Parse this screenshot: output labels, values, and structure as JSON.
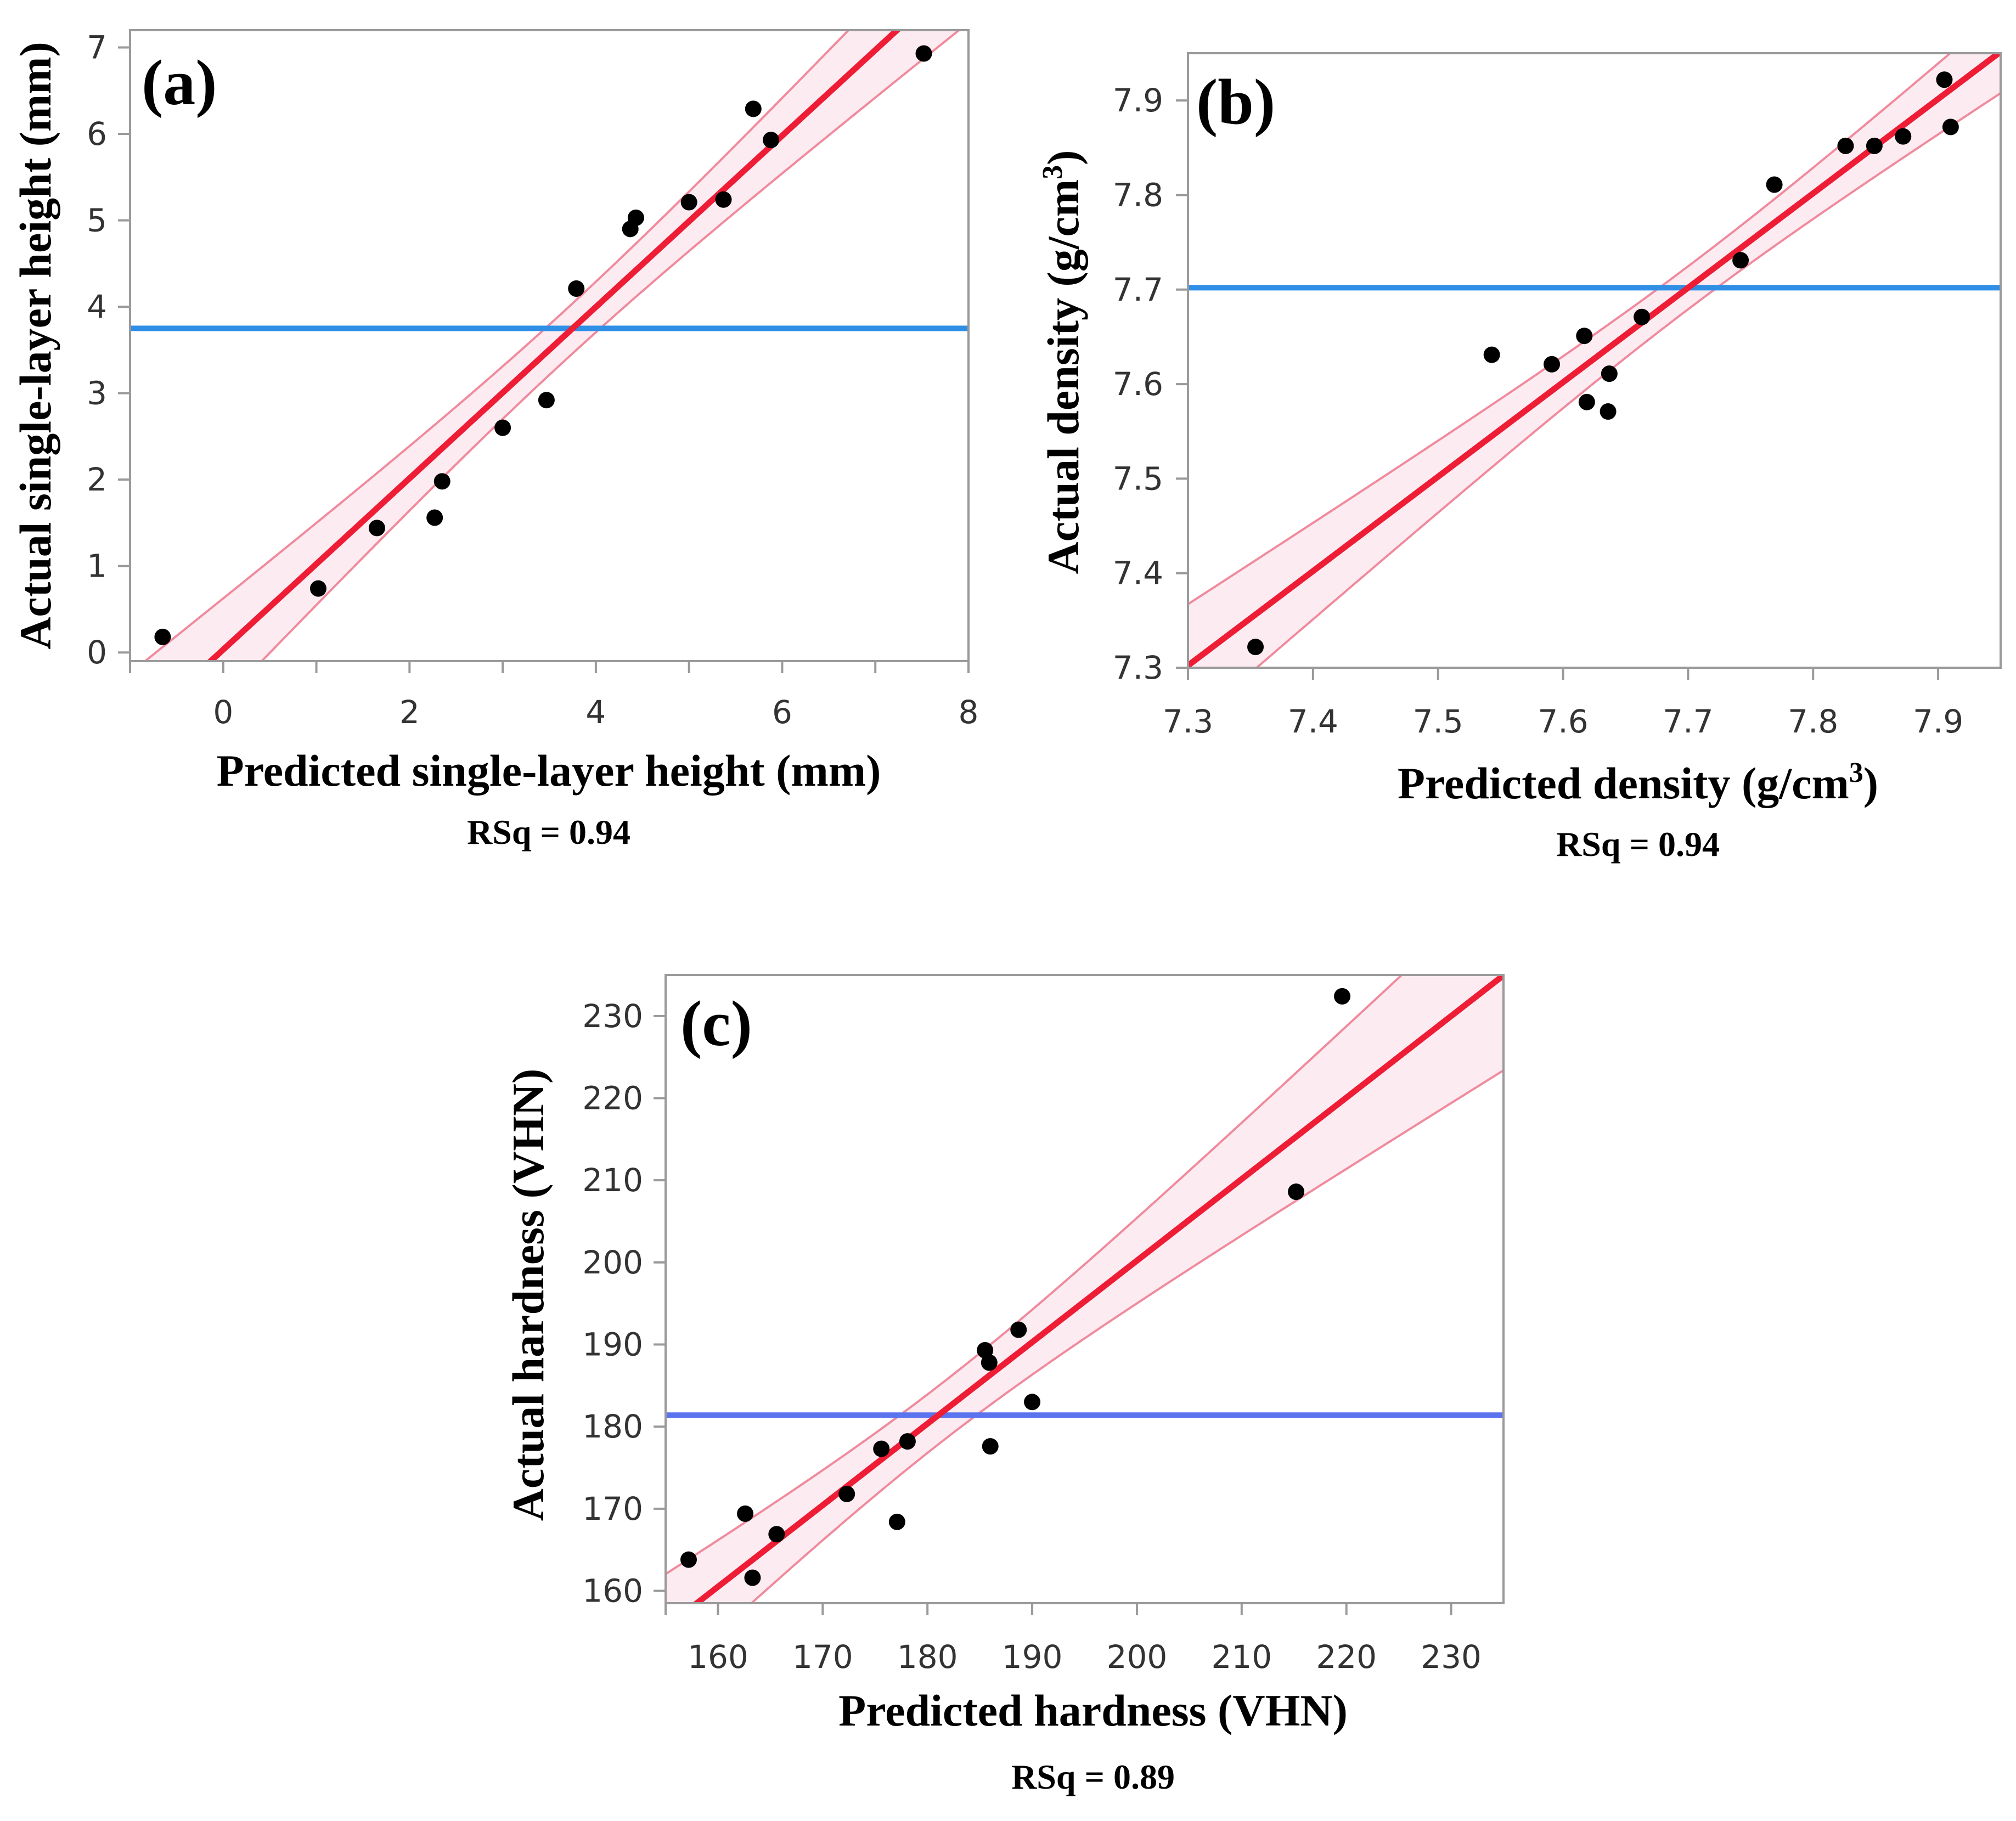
{
  "chart_data": [
    {
      "type": "scatter",
      "panel_label": "(a)",
      "xlabel": "Predicted single-layer height (mm)",
      "ylabel": "Actual single-layer height (mm)",
      "rsq_label": "RSq = 0.94",
      "xlim": [
        -1,
        8
      ],
      "ylim": [
        -0.1,
        7.2
      ],
      "xticks": [
        0,
        2,
        4,
        6,
        8
      ],
      "yticks": [
        0,
        1,
        2,
        3,
        4,
        5,
        6,
        7
      ],
      "x_minor_ticks": [
        -1,
        1,
        3,
        5,
        7
      ],
      "mean_line": 3.75,
      "mean_color": "#2f8ee5",
      "fit_color": "#ee1c35",
      "band_color": "#fbe9ee",
      "conf_color": "#f08a9c",
      "grid": false,
      "points": [
        [
          -0.65,
          0.18
        ],
        [
          1.02,
          0.74
        ],
        [
          1.65,
          1.44
        ],
        [
          2.27,
          1.56
        ],
        [
          2.35,
          1.98
        ],
        [
          3.0,
          2.6
        ],
        [
          3.47,
          2.92
        ],
        [
          3.79,
          4.21
        ],
        [
          4.37,
          4.9
        ],
        [
          4.43,
          5.03
        ],
        [
          5.0,
          5.21
        ],
        [
          5.37,
          5.24
        ],
        [
          5.69,
          6.29
        ],
        [
          5.88,
          5.93
        ],
        [
          7.52,
          6.93
        ]
      ]
    },
    {
      "type": "scatter",
      "panel_label": "(b)",
      "xlabel": "Predicted density (g/cm",
      "xlabel_sup": "3",
      "xlabel_end": ")",
      "ylabel": "Actual density (g/cm",
      "ylabel_sup": "3",
      "ylabel_end": ")",
      "rsq_label": "RSq = 0.94",
      "xlim": [
        7.3,
        7.95
      ],
      "ylim": [
        7.3,
        7.95
      ],
      "xticks": [
        7.3,
        7.4,
        7.5,
        7.6,
        7.7,
        7.8,
        7.9
      ],
      "yticks": [
        7.3,
        7.4,
        7.5,
        7.6,
        7.7,
        7.8,
        7.9
      ],
      "x_tick_labels": [
        "7.3",
        "7.4",
        "7.5",
        "7.6",
        "7.7",
        "7.8",
        "7.9"
      ],
      "y_tick_labels": [
        "7.3",
        "7.4",
        "7.5",
        "7.6",
        "7.7",
        "7.8",
        "7.9"
      ],
      "mean_line": 7.702,
      "mean_color": "#2f8ee5",
      "fit_color": "#ee1c35",
      "band_color": "#fbe9ee",
      "conf_color": "#f08a9c",
      "grid": false,
      "points": [
        [
          7.354,
          7.322
        ],
        [
          7.543,
          7.631
        ],
        [
          7.591,
          7.621
        ],
        [
          7.617,
          7.651
        ],
        [
          7.619,
          7.581
        ],
        [
          7.636,
          7.571
        ],
        [
          7.637,
          7.611
        ],
        [
          7.663,
          7.671
        ],
        [
          7.742,
          7.731
        ],
        [
          7.769,
          7.811
        ],
        [
          7.826,
          7.852
        ],
        [
          7.849,
          7.852
        ],
        [
          7.872,
          7.862
        ],
        [
          7.905,
          7.922
        ],
        [
          7.91,
          7.872
        ]
      ]
    },
    {
      "type": "scatter",
      "panel_label": "(c)",
      "xlabel": "Predicted hardness (VHN)",
      "ylabel": "Actual hardness (VHN)",
      "rsq_label": "RSq = 0.89",
      "xlim": [
        155,
        235
      ],
      "ylim": [
        158.5,
        235
      ],
      "xticks": [
        160,
        170,
        180,
        190,
        200,
        210,
        220,
        230
      ],
      "yticks": [
        160,
        170,
        180,
        190,
        200,
        210,
        220,
        230
      ],
      "x_minor_ticks": [
        155
      ],
      "mean_line": 181.4,
      "mean_color": "#5b73ee",
      "fit_color": "#ee1c35",
      "band_color": "#fbe9ee",
      "conf_color": "#f08a9c",
      "grid": false,
      "points": [
        [
          157.2,
          163.8
        ],
        [
          162.6,
          169.4
        ],
        [
          163.3,
          161.6
        ],
        [
          165.6,
          166.9
        ],
        [
          172.3,
          171.8
        ],
        [
          175.6,
          177.3
        ],
        [
          177.1,
          168.4
        ],
        [
          178.1,
          178.2
        ],
        [
          185.5,
          189.3
        ],
        [
          185.9,
          187.8
        ],
        [
          186.0,
          177.6
        ],
        [
          188.7,
          191.8
        ],
        [
          190.0,
          183.0
        ],
        [
          215.2,
          208.6
        ],
        [
          219.6,
          232.4
        ]
      ]
    }
  ]
}
